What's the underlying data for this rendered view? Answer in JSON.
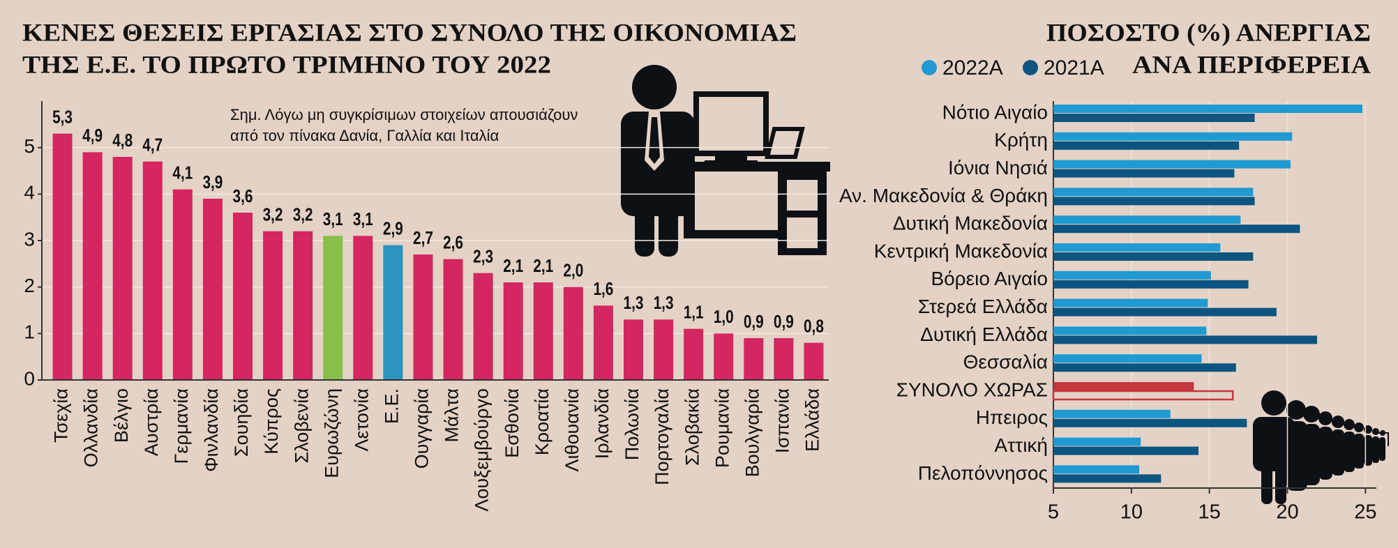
{
  "chart_data": [
    {
      "type": "bar",
      "title": [
        "ΚΕΝΕΣ ΘΕΣΕΙΣ ΕΡΓΑΣΙΑΣ ΣΤΟ ΣΥΝΟΛΟ ΤΗΣ ΟΙΚΟΝΟΜΙΑΣ",
        "ΤΗΣ Ε.Ε. ΤΟ ΠΡΩΤΟ ΤΡΙΜΗΝΟ ΤΟΥ 2022"
      ],
      "note": [
        "Σημ. Λόγω μη συγκρίσιμων στοιχείων απουσιάζουν",
        "από τον πίνακα Δανία, Γαλλία και Ιταλία"
      ],
      "categories": [
        "Τσεχία",
        "Ολλανδία",
        "Βέλγιο",
        "Αυστρία",
        "Γερμανία",
        "Φινλανδία",
        "Σουηδία",
        "Κύπρος",
        "Σλοβενία",
        "Ευρωζώνη",
        "Λετονία",
        "Ε.Ε.",
        "Ουγγαρία",
        "Μάλτα",
        "Λουξεμβούργο",
        "Εσθονία",
        "Κροατία",
        "Λιθουανία",
        "Ιρλανδία",
        "Πολωνία",
        "Πορτογαλία",
        "Σλοβακία",
        "Ρουμανία",
        "Βουλγαρία",
        "Ισπανία",
        "Ελλάδα"
      ],
      "values": [
        5.3,
        4.9,
        4.8,
        4.7,
        4.1,
        3.9,
        3.6,
        3.2,
        3.2,
        3.1,
        3.1,
        2.9,
        2.7,
        2.6,
        2.3,
        2.1,
        2.1,
        2.0,
        1.6,
        1.3,
        1.3,
        1.1,
        1.0,
        0.9,
        0.9,
        0.8
      ],
      "value_labels": [
        "5,3",
        "4,9",
        "4,8",
        "4,7",
        "4,1",
        "3,9",
        "3,6",
        "3,2",
        "3,2",
        "3,1",
        "3,1",
        "2,9",
        "2,7",
        "2,6",
        "2,3",
        "2,1",
        "2,1",
        "2,0",
        "1,6",
        "1,3",
        "1,3",
        "1,1",
        "1,0",
        "0,9",
        "0,9",
        "0,8"
      ],
      "colors": [
        "#d42660",
        "#d42660",
        "#d42660",
        "#d42660",
        "#d42660",
        "#d42660",
        "#d42660",
        "#d42660",
        "#d42660",
        "#86bf4a",
        "#d42660",
        "#2b93bd",
        "#d42660",
        "#d42660",
        "#d42660",
        "#d42660",
        "#d42660",
        "#d42660",
        "#d42660",
        "#d42660",
        "#d42660",
        "#d42660",
        "#d42660",
        "#d42660",
        "#d42660",
        "#d42660"
      ],
      "ylim": [
        0,
        6
      ],
      "yticks": [
        0,
        1,
        2,
        3,
        4,
        5
      ],
      "grid": true
    },
    {
      "type": "barh",
      "title": [
        "ΠΟΣΟΣΤΟ (%) ΑΝΕΡΓΙΑΣ",
        "ΑΝΑ ΠΕΡΙΦΕΡΕΙΑ"
      ],
      "categories": [
        "Νότιο Αιγαίο",
        "Κρήτη",
        "Ιόνια Νησιά",
        "Αν. Μακεδονία & Θράκη",
        "Δυτική Μακεδονία",
        "Κεντρική Μακεδονία",
        "Βόρειο Αιγαίο",
        "Στερεά Ελλάδα",
        "Δυτική Ελλάδα",
        "Θεσσαλία",
        "ΣΥΝΟΛΟ ΧΩΡΑΣ",
        "Ηπειρος",
        "Αττική",
        "Πελοπόννησος"
      ],
      "series": [
        {
          "name": "2022Α",
          "color": "#1f9ad2",
          "values": [
            24.8,
            20.3,
            20.2,
            17.8,
            17.0,
            15.7,
            15.1,
            14.9,
            14.8,
            14.5,
            14.0,
            12.5,
            10.6,
            10.5
          ],
          "colors": [
            "#1f9ad2",
            "#1f9ad2",
            "#1f9ad2",
            "#1f9ad2",
            "#1f9ad2",
            "#1f9ad2",
            "#1f9ad2",
            "#1f9ad2",
            "#1f9ad2",
            "#1f9ad2",
            "#c4373f",
            "#1f9ad2",
            "#1f9ad2",
            "#1f9ad2"
          ]
        },
        {
          "name": "2021Α",
          "color": "#0c5580",
          "values": [
            17.9,
            16.9,
            16.6,
            17.9,
            20.8,
            17.8,
            17.5,
            19.3,
            21.9,
            16.7,
            16.5,
            17.4,
            14.3,
            11.9
          ],
          "colors": [
            "#0c5580",
            "#0c5580",
            "#0c5580",
            "#0c5580",
            "#0c5580",
            "#0c5580",
            "#0c5580",
            "#0c5580",
            "#0c5580",
            "#0c5580",
            "#c4373f",
            "#0c5580",
            "#0c5580",
            "#0c5580"
          ],
          "outlined": [
            false,
            false,
            false,
            false,
            false,
            false,
            false,
            false,
            false,
            false,
            true,
            false,
            false,
            false
          ]
        }
      ],
      "xlim": [
        5,
        25.7
      ],
      "xticks": [
        5,
        10,
        15,
        20,
        25
      ],
      "grid": true
    }
  ]
}
